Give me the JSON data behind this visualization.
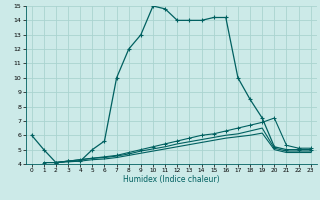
{
  "xlabel": "Humidex (Indice chaleur)",
  "bg_color": "#cceae8",
  "grid_color": "#aad4d0",
  "line_color": "#006060",
  "xlim": [
    -0.5,
    23.5
  ],
  "ylim": [
    4,
    15
  ],
  "yticks": [
    4,
    5,
    6,
    7,
    8,
    9,
    10,
    11,
    12,
    13,
    14,
    15
  ],
  "xticks": [
    0,
    1,
    2,
    3,
    4,
    5,
    6,
    7,
    8,
    9,
    10,
    11,
    12,
    13,
    14,
    15,
    16,
    17,
    18,
    19,
    20,
    21,
    22,
    23
  ],
  "line1_x": [
    0,
    1,
    2,
    3,
    4,
    5,
    6,
    7,
    8,
    9,
    10,
    11,
    12,
    13,
    14,
    15,
    16,
    17,
    18,
    19,
    20,
    21,
    22,
    23
  ],
  "line1_y": [
    6.0,
    5.0,
    4.1,
    4.2,
    4.2,
    5.0,
    5.6,
    10.0,
    12.0,
    13.0,
    15.0,
    14.8,
    14.0,
    14.0,
    14.0,
    14.2,
    14.2,
    10.0,
    8.5,
    7.2,
    5.2,
    5.0,
    5.0,
    5.0
  ],
  "line2_x": [
    1,
    2,
    3,
    4,
    5,
    6,
    7,
    8,
    9,
    10,
    11,
    12,
    13,
    14,
    15,
    16,
    17,
    18,
    19,
    20,
    21,
    22,
    23
  ],
  "line2_y": [
    4.1,
    4.1,
    4.2,
    4.3,
    4.4,
    4.5,
    4.6,
    4.8,
    5.0,
    5.2,
    5.4,
    5.6,
    5.8,
    6.0,
    6.1,
    6.3,
    6.5,
    6.7,
    6.9,
    7.2,
    5.3,
    5.1,
    5.1
  ],
  "line3_x": [
    1,
    2,
    3,
    4,
    5,
    6,
    7,
    8,
    9,
    10,
    11,
    12,
    13,
    14,
    15,
    16,
    17,
    18,
    19,
    20,
    21,
    22,
    23
  ],
  "line3_y": [
    4.1,
    4.1,
    4.2,
    4.3,
    4.4,
    4.45,
    4.55,
    4.7,
    4.9,
    5.05,
    5.2,
    5.4,
    5.55,
    5.7,
    5.85,
    6.0,
    6.1,
    6.3,
    6.5,
    5.1,
    4.9,
    4.9,
    4.9
  ],
  "line4_x": [
    2,
    3,
    4,
    5,
    6,
    7,
    8,
    9,
    10,
    11,
    12,
    13,
    14,
    15,
    16,
    17,
    18,
    19,
    20,
    21,
    22,
    23
  ],
  "line4_y": [
    4.1,
    4.15,
    4.2,
    4.3,
    4.35,
    4.45,
    4.6,
    4.75,
    4.9,
    5.05,
    5.2,
    5.35,
    5.5,
    5.65,
    5.8,
    5.9,
    6.0,
    6.15,
    5.0,
    4.8,
    4.8,
    4.8
  ]
}
